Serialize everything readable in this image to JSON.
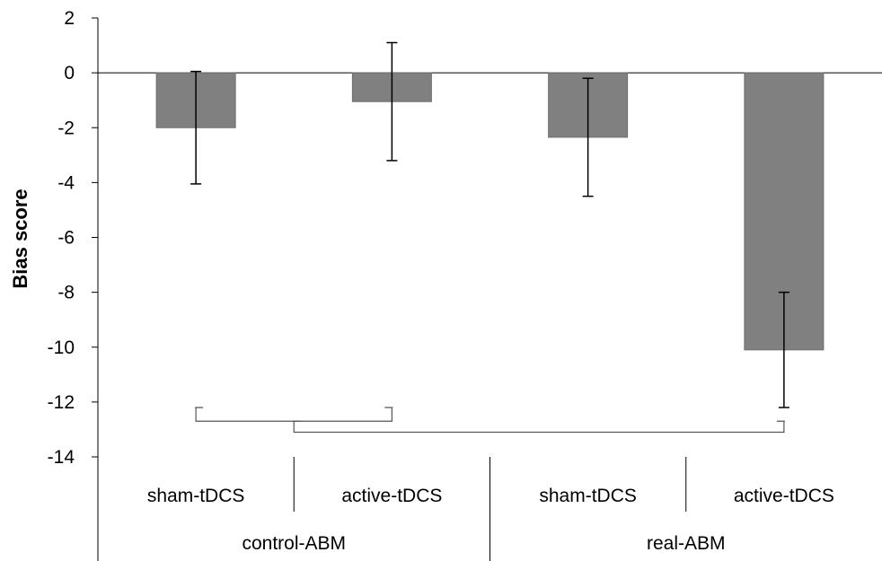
{
  "chart_data": {
    "type": "bar",
    "ylabel": "Bias score",
    "xlabel": "",
    "title": "",
    "ylim": [
      -14,
      2
    ],
    "yticks": [
      2,
      0,
      -2,
      -4,
      -6,
      -8,
      -10,
      -12,
      -14
    ],
    "grid": false,
    "legend": "none",
    "bar_color": "#808080",
    "groups": [
      {
        "label": "control-ABM",
        "categories": [
          "sham-tDCS",
          "active-tDCS"
        ]
      },
      {
        "label": "real-ABM",
        "categories": [
          "sham-tDCS",
          "active-tDCS"
        ]
      }
    ],
    "categories": [
      "sham-tDCS",
      "active-tDCS",
      "sham-tDCS",
      "active-tDCS"
    ],
    "values": [
      -2.0,
      -1.05,
      -2.35,
      -10.1
    ],
    "error_high": [
      0.05,
      1.1,
      -0.2,
      -8.0
    ],
    "error_low": [
      -4.05,
      -3.2,
      -4.5,
      -12.2
    ],
    "brackets": [
      {
        "from_bar": 0,
        "to_bar": 1,
        "top": -12.2,
        "bottom": -12.7
      },
      {
        "from_bar": 0.5,
        "to_bar": 3,
        "top": -12.7,
        "bottom": -13.1
      }
    ]
  }
}
